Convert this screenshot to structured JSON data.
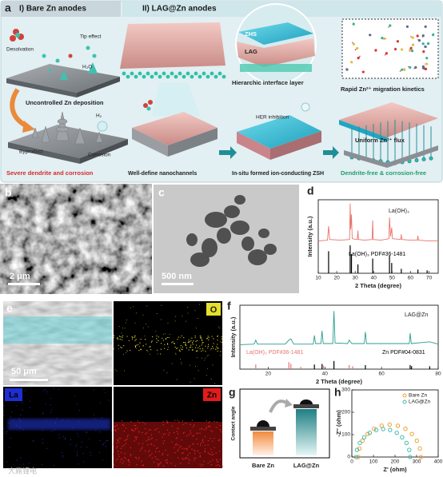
{
  "panels": {
    "a": {
      "label": "a",
      "bare_title": "I) Bare Zn anodes",
      "lag_title": "II) LAG@Zn anodes",
      "texts": {
        "desolvation": "Desolvation",
        "tip_effect": "Tip effect",
        "h2o": "H₂O",
        "uncontrolled": "Uncontrolled Zn deposition",
        "h2": "H₂",
        "byproduct": "Byproduct",
        "corrosion": "Corrosion",
        "severe": "Severe dendrite and corrosion",
        "zhs": "ZHS",
        "lag": "LAG",
        "hierarchic": "Hierarchic interface layer",
        "rapid": "Rapid Zn²⁺ migration kinetics",
        "her": "HER inhibition",
        "nanochannels": "Well-define nanochannels",
        "insitu": "In-situ formed ion-conducting ZSH",
        "uniform": "Uniform Zn²⁺ flux",
        "dendrite_free": "Dendrite-free & corrosion-free"
      }
    },
    "b": {
      "label": "b",
      "scale_bar": "2 μm"
    },
    "c": {
      "label": "c",
      "scale_bar": "500 nm"
    },
    "e": {
      "label": "e",
      "scale_bar": "50 μm",
      "maps": [
        "O",
        "La",
        "Zn"
      ]
    },
    "g": {
      "label": "g",
      "ylabel": "Contact angle",
      "categories": [
        "Bare Zn",
        "LAG@Zn"
      ]
    },
    "watermark": "大鼎锂电"
  },
  "chart_data": [
    {
      "panel": "d",
      "type": "line",
      "xlabel": "2 Theta (degree)",
      "ylabel": "Intensity (a.u.)",
      "xlim": [
        10,
        75
      ],
      "xticks": [
        10,
        20,
        30,
        40,
        50,
        60,
        70
      ],
      "ylim": [
        0,
        100
      ],
      "series": [
        {
          "name": "La(OH)₃",
          "color": "#e8746c",
          "x": [
            10,
            15,
            15.6,
            16.2,
            22,
            27,
            27.3,
            27.6,
            28,
            28.4,
            31.2,
            31.5,
            31.8,
            35,
            39.2,
            39.5,
            39.8,
            44,
            48.3,
            48.6,
            49.2,
            49.8,
            50.2,
            54.7,
            55,
            55.3,
            60,
            63.7,
            64,
            64.3,
            70,
            75
          ],
          "values": [
            44,
            45,
            64,
            46,
            45,
            46,
            95,
            60,
            80,
            47,
            46,
            58,
            46,
            45,
            46,
            72,
            46,
            45,
            47,
            76,
            50,
            62,
            47,
            46,
            53,
            46,
            45,
            45,
            51,
            45,
            44,
            44
          ]
        }
      ],
      "references": [
        {
          "name": "La(OH)₃ PDF#36-1481",
          "color": "#000000",
          "x": [
            15.6,
            27.3,
            28,
            31.5,
            39.5,
            48.6,
            49.8,
            55,
            64,
            69
          ],
          "values": [
            30,
            38,
            26,
            12,
            20,
            24,
            14,
            6,
            5,
            4
          ]
        }
      ]
    },
    {
      "panel": "f",
      "type": "line",
      "xlabel": "2 Theta (degree)",
      "ylabel": "Intensity (a.u.)",
      "xlim": [
        10,
        80
      ],
      "xticks": [
        20,
        40,
        60,
        80
      ],
      "ylim": [
        0,
        110
      ],
      "series": [
        {
          "name": "LAG@Zn",
          "color": "#2a9d8f",
          "x": [
            10,
            15,
            15.6,
            16.2,
            26,
            27.3,
            28,
            29,
            35.9,
            36.3,
            36.7,
            38.6,
            39,
            39.4,
            42.8,
            43.2,
            43.6,
            48,
            48.6,
            49.5,
            53.9,
            54.3,
            54.7,
            62,
            69.8,
            70.1,
            70.5,
            77,
            80
          ],
          "values": [
            42,
            43,
            50,
            43,
            43,
            50,
            52,
            43,
            43,
            58,
            44,
            44,
            66,
            44,
            44,
            100,
            45,
            44,
            50,
            44,
            44,
            64,
            44,
            44,
            44,
            62,
            44,
            47,
            43
          ]
        }
      ],
      "references": [
        {
          "name": "La(OH)₃ PDF#36-1481",
          "color": "#e8746c",
          "x": [
            15.6,
            27.3,
            28,
            31.5,
            39.5,
            48.6,
            49.8
          ],
          "values": [
            8,
            12,
            9,
            4,
            6,
            7,
            5
          ]
        },
        {
          "name": "Zn PDF#04-0831",
          "color": "#000000",
          "x": [
            36.3,
            39,
            43.2,
            54.3,
            70.1,
            70.6,
            77
          ],
          "values": [
            8,
            9,
            14,
            7,
            7,
            5,
            5
          ]
        }
      ]
    },
    {
      "panel": "h",
      "type": "scatter",
      "xlabel": "Z' (ohm)",
      "ylabel": "-Z'' (ohm)",
      "xlim": [
        0,
        400
      ],
      "xticks": [
        0,
        100,
        200,
        300,
        400
      ],
      "ylim": [
        0,
        300
      ],
      "yticks": [
        0,
        100,
        200,
        300
      ],
      "legend": "upper right",
      "series": [
        {
          "name": "Bare Zn",
          "color": "#f0a030",
          "x": [
            30,
            35,
            49,
            73,
            103,
            138,
            175,
            213,
            248,
            278,
            301,
            315,
            320
          ],
          "values": [
            0,
            38,
            73,
            103,
            126,
            140,
            145,
            140,
            126,
            103,
            73,
            38,
            0
          ]
        },
        {
          "name": "LAG@Zn",
          "color": "#3fb8af",
          "x": [
            20,
            24,
            37,
            57,
            83,
            113,
            145,
            177,
            208,
            233,
            253,
            266,
            270
          ],
          "values": [
            0,
            32,
            63,
            88,
            108,
            121,
            125,
            121,
            108,
            88,
            63,
            32,
            0
          ]
        }
      ]
    }
  ]
}
